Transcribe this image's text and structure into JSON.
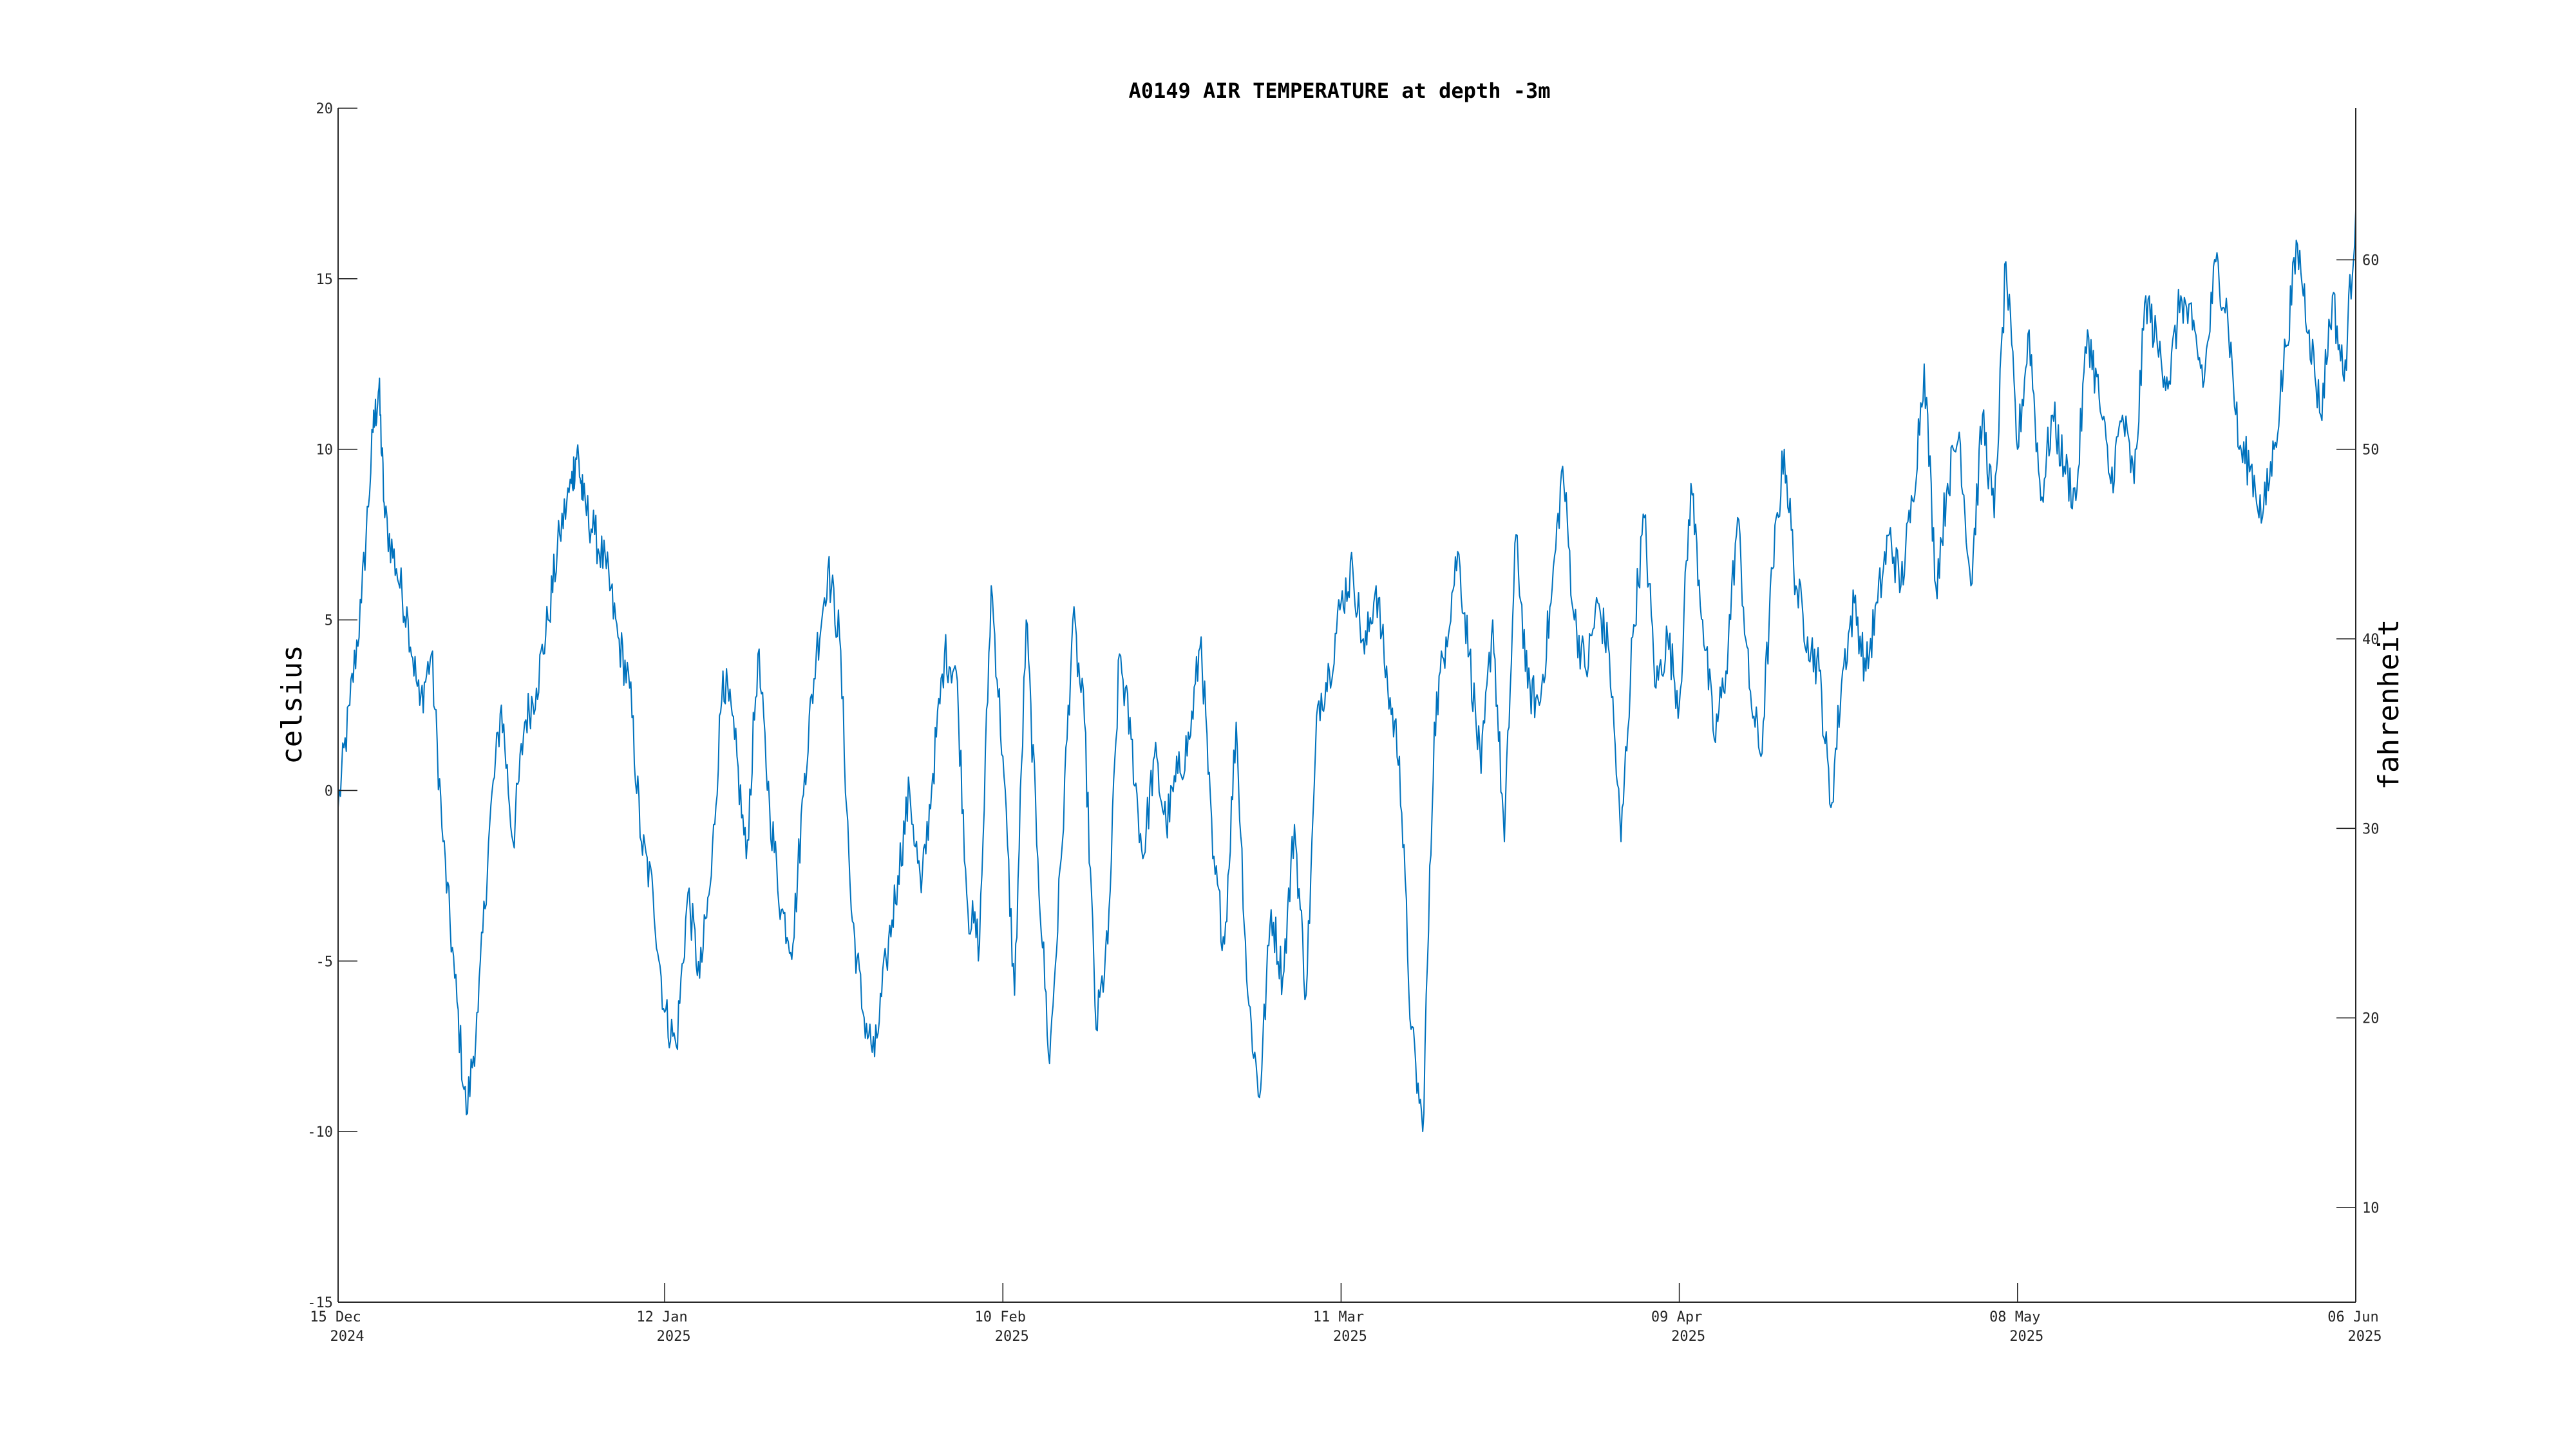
{
  "chart_data": {
    "type": "line",
    "title": "A0149 AIR TEMPERATURE at depth -3m",
    "ylabel": "celsius",
    "y2label": "fahrenheit",
    "xlim": [
      "2024-12-15",
      "2025-06-06"
    ],
    "ylim": [
      -15,
      20
    ],
    "y2lim": [
      5,
      68
    ],
    "grid": false,
    "line_color": "#0072BD",
    "x_ticks": [
      {
        "date": "2024-12-15",
        "line1": "15 Dec",
        "line2": "2024"
      },
      {
        "date": "2025-01-12",
        "line1": "12 Jan",
        "line2": "2025"
      },
      {
        "date": "2025-02-10",
        "line1": "10 Feb",
        "line2": "2025"
      },
      {
        "date": "2025-03-11",
        "line1": "11 Mar",
        "line2": "2025"
      },
      {
        "date": "2025-04-09",
        "line1": "09 Apr",
        "line2": "2025"
      },
      {
        "date": "2025-05-08",
        "line1": "08 May",
        "line2": "2025"
      },
      {
        "date": "2025-06-06",
        "line1": "06 Jun",
        "line2": "2025"
      }
    ],
    "y_ticks": [
      {
        "value": -15,
        "label": "-15"
      },
      {
        "value": -10,
        "label": "-10"
      },
      {
        "value": -5,
        "label": "-5"
      },
      {
        "value": 0,
        "label": "0"
      },
      {
        "value": 5,
        "label": "5"
      },
      {
        "value": 10,
        "label": "10"
      },
      {
        "value": 15,
        "label": "15"
      },
      {
        "value": 20,
        "label": "20"
      }
    ],
    "y2_ticks": [
      {
        "value": 10,
        "label": "10"
      },
      {
        "value": 20,
        "label": "20"
      },
      {
        "value": 30,
        "label": "30"
      },
      {
        "value": 40,
        "label": "40"
      },
      {
        "value": 50,
        "label": "50"
      },
      {
        "value": 60,
        "label": "60"
      }
    ],
    "series": [
      {
        "name": "",
        "points": [
          [
            "2024-12-15",
            -0.5
          ],
          [
            "2024-12-16",
            2.5
          ],
          [
            "2024-12-17",
            5.5
          ],
          [
            "2024-12-18",
            10.5
          ],
          [
            "2024-12-18T12",
            11.8
          ],
          [
            "2024-12-19",
            8.0
          ],
          [
            "2024-12-20",
            6.5
          ],
          [
            "2024-12-21",
            5.0
          ],
          [
            "2024-12-22",
            2.5
          ],
          [
            "2024-12-23",
            4.0
          ],
          [
            "2024-12-24",
            -1.5
          ],
          [
            "2024-12-25",
            -5.5
          ],
          [
            "2024-12-26",
            -9.5
          ],
          [
            "2024-12-27",
            -6.5
          ],
          [
            "2024-12-28",
            -1.0
          ],
          [
            "2024-12-29",
            2.5
          ],
          [
            "2024-12-30",
            -1.5
          ],
          [
            "2024-12-31",
            2.0
          ],
          [
            "2025-01-01",
            3.0
          ],
          [
            "2025-01-02",
            5.0
          ],
          [
            "2025-01-03",
            7.5
          ],
          [
            "2025-01-04",
            9.0
          ],
          [
            "2025-01-04T12",
            10.0
          ],
          [
            "2025-01-05",
            8.5
          ],
          [
            "2025-01-06",
            7.5
          ],
          [
            "2025-01-07",
            6.5
          ],
          [
            "2025-01-08",
            4.5
          ],
          [
            "2025-01-09",
            3.0
          ],
          [
            "2025-01-10",
            -1.5
          ],
          [
            "2025-01-11",
            -3.0
          ],
          [
            "2025-01-12",
            -6.5
          ],
          [
            "2025-01-13",
            -7.5
          ],
          [
            "2025-01-14",
            -3.0
          ],
          [
            "2025-01-15",
            -5.5
          ],
          [
            "2025-01-16",
            -2.5
          ],
          [
            "2025-01-17",
            3.5
          ],
          [
            "2025-01-18",
            1.5
          ],
          [
            "2025-01-19",
            -2.0
          ],
          [
            "2025-01-20",
            4.0
          ],
          [
            "2025-01-21",
            -0.5
          ],
          [
            "2025-01-22",
            -3.5
          ],
          [
            "2025-01-23",
            -4.5
          ],
          [
            "2025-01-24",
            0.5
          ],
          [
            "2025-01-25",
            4.0
          ],
          [
            "2025-01-26",
            6.5
          ],
          [
            "2025-01-27",
            4.5
          ],
          [
            "2025-01-28",
            -3.5
          ],
          [
            "2025-01-29",
            -6.5
          ],
          [
            "2025-01-30",
            -7.8
          ],
          [
            "2025-01-31",
            -5.0
          ],
          [
            "2025-02-01",
            -2.5
          ],
          [
            "2025-02-02",
            0.0
          ],
          [
            "2025-02-03",
            -3.0
          ],
          [
            "2025-02-04",
            0.5
          ],
          [
            "2025-02-05",
            4.0
          ],
          [
            "2025-02-06",
            3.5
          ],
          [
            "2025-02-07",
            -3.5
          ],
          [
            "2025-02-08",
            -4.5
          ],
          [
            "2025-02-09",
            6.0
          ],
          [
            "2025-02-10",
            1.0
          ],
          [
            "2025-02-11",
            -6.0
          ],
          [
            "2025-02-12",
            5.0
          ],
          [
            "2025-02-13",
            -2.0
          ],
          [
            "2025-02-14",
            -8.0
          ],
          [
            "2025-02-15",
            -2.0
          ],
          [
            "2025-02-16",
            5.0
          ],
          [
            "2025-02-17",
            2.0
          ],
          [
            "2025-02-18",
            -7.0
          ],
          [
            "2025-02-19",
            -4.5
          ],
          [
            "2025-02-20",
            4.0
          ],
          [
            "2025-02-21",
            1.5
          ],
          [
            "2025-02-22",
            -2.0
          ],
          [
            "2025-02-23",
            1.0
          ],
          [
            "2025-02-24",
            -1.0
          ],
          [
            "2025-02-25",
            0.5
          ],
          [
            "2025-02-26",
            1.5
          ],
          [
            "2025-02-27",
            4.5
          ],
          [
            "2025-02-28",
            -2.0
          ],
          [
            "2025-03-01",
            -4.5
          ],
          [
            "2025-03-02",
            2.0
          ],
          [
            "2025-03-03",
            -6.0
          ],
          [
            "2025-03-04",
            -9.0
          ],
          [
            "2025-03-05",
            -3.5
          ],
          [
            "2025-03-06",
            -5.5
          ],
          [
            "2025-03-07",
            -1.0
          ],
          [
            "2025-03-08",
            -6.0
          ],
          [
            "2025-03-09",
            2.5
          ],
          [
            "2025-03-10",
            3.5
          ],
          [
            "2025-03-11",
            5.5
          ],
          [
            "2025-03-12",
            6.5
          ],
          [
            "2025-03-13",
            4.0
          ],
          [
            "2025-03-14",
            6.0
          ],
          [
            "2025-03-15",
            3.0
          ],
          [
            "2025-03-16",
            1.0
          ],
          [
            "2025-03-17",
            -7.0
          ],
          [
            "2025-03-18",
            -10.0
          ],
          [
            "2025-03-19",
            2.0
          ],
          [
            "2025-03-20",
            4.5
          ],
          [
            "2025-03-21",
            7.0
          ],
          [
            "2025-03-22",
            4.0
          ],
          [
            "2025-03-23",
            0.5
          ],
          [
            "2025-03-24",
            5.0
          ],
          [
            "2025-03-25",
            -1.5
          ],
          [
            "2025-03-26",
            7.5
          ],
          [
            "2025-03-27",
            3.0
          ],
          [
            "2025-03-28",
            2.5
          ],
          [
            "2025-03-29",
            5.5
          ],
          [
            "2025-03-30",
            9.5
          ],
          [
            "2025-03-31",
            5.0
          ],
          [
            "2025-04-01",
            3.5
          ],
          [
            "2025-04-02",
            5.5
          ],
          [
            "2025-04-03",
            4.0
          ],
          [
            "2025-04-04",
            -1.5
          ],
          [
            "2025-04-05",
            4.5
          ],
          [
            "2025-04-06",
            8.0
          ],
          [
            "2025-04-07",
            3.0
          ],
          [
            "2025-04-08",
            4.5
          ],
          [
            "2025-04-09",
            2.5
          ],
          [
            "2025-04-10",
            9.0
          ],
          [
            "2025-04-11",
            5.0
          ],
          [
            "2025-04-12",
            1.5
          ],
          [
            "2025-04-13",
            3.5
          ],
          [
            "2025-04-14",
            8.0
          ],
          [
            "2025-04-15",
            3.0
          ],
          [
            "2025-04-16",
            1.0
          ],
          [
            "2025-04-17",
            6.5
          ],
          [
            "2025-04-18",
            10.0
          ],
          [
            "2025-04-19",
            6.0
          ],
          [
            "2025-04-20",
            4.5
          ],
          [
            "2025-04-21",
            3.5
          ],
          [
            "2025-04-22",
            -0.5
          ],
          [
            "2025-04-23",
            3.5
          ],
          [
            "2025-04-24",
            5.5
          ],
          [
            "2025-04-25",
            3.5
          ],
          [
            "2025-04-26",
            5.5
          ],
          [
            "2025-04-27",
            7.5
          ],
          [
            "2025-04-28",
            6.0
          ],
          [
            "2025-04-29",
            8.5
          ],
          [
            "2025-04-30",
            12.5
          ],
          [
            "2025-05-01",
            6.0
          ],
          [
            "2025-05-02",
            9.0
          ],
          [
            "2025-05-03",
            10.5
          ],
          [
            "2025-05-04",
            6.0
          ],
          [
            "2025-05-05",
            11.0
          ],
          [
            "2025-05-06",
            8.0
          ],
          [
            "2025-05-07",
            15.5
          ],
          [
            "2025-05-08",
            10.0
          ],
          [
            "2025-05-09",
            13.5
          ],
          [
            "2025-05-10",
            8.5
          ],
          [
            "2025-05-11",
            11.0
          ],
          [
            "2025-05-12",
            9.5
          ],
          [
            "2025-05-13",
            8.5
          ],
          [
            "2025-05-14",
            13.5
          ],
          [
            "2025-05-15",
            11.5
          ],
          [
            "2025-05-16",
            9.0
          ],
          [
            "2025-05-17",
            11.0
          ],
          [
            "2025-05-18",
            9.0
          ],
          [
            "2025-05-19",
            14.5
          ],
          [
            "2025-05-20",
            13.0
          ],
          [
            "2025-05-21",
            12.0
          ],
          [
            "2025-05-22",
            14.5
          ],
          [
            "2025-05-23",
            13.5
          ],
          [
            "2025-05-24",
            12.0
          ],
          [
            "2025-05-25",
            15.5
          ],
          [
            "2025-05-26",
            14.0
          ],
          [
            "2025-05-27",
            10.0
          ],
          [
            "2025-05-28",
            9.5
          ],
          [
            "2025-05-29",
            8.0
          ],
          [
            "2025-05-30",
            10.0
          ],
          [
            "2025-05-31",
            13.0
          ],
          [
            "2025-06-01",
            16.0
          ],
          [
            "2025-06-02",
            13.5
          ],
          [
            "2025-06-03",
            11.0
          ],
          [
            "2025-06-04",
            14.5
          ],
          [
            "2025-06-05",
            12.0
          ],
          [
            "2025-06-06",
            17.0
          ]
        ]
      }
    ]
  }
}
